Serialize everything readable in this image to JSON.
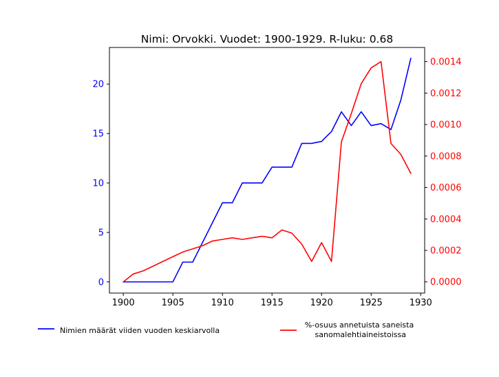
{
  "chart_data": {
    "type": "line",
    "title": "Nimi: Orvokki. Vuodet: 1900-1929. R-luku: 0.68",
    "x": [
      1900,
      1901,
      1902,
      1903,
      1904,
      1905,
      1906,
      1907,
      1908,
      1909,
      1910,
      1911,
      1912,
      1913,
      1914,
      1915,
      1916,
      1917,
      1918,
      1919,
      1920,
      1921,
      1922,
      1923,
      1924,
      1925,
      1926,
      1927,
      1928,
      1929
    ],
    "xlim": [
      1898.6,
      1930.4
    ],
    "xticks": [
      1900,
      1905,
      1910,
      1915,
      1920,
      1925,
      1930
    ],
    "grid": false,
    "legend_placement": "bottom",
    "series": [
      {
        "name": "Nimien määrät viiden vuoden keskiarvolla",
        "axis": "left",
        "color": "#0000ff",
        "values": [
          0,
          0,
          0,
          0,
          0,
          0,
          2,
          2,
          4,
          6,
          8,
          8,
          10,
          10,
          10,
          11.6,
          11.6,
          11.6,
          14,
          14,
          14.2,
          15.2,
          17.2,
          15.8,
          17.2,
          15.8,
          16,
          15.4,
          18.4,
          22.6
        ]
      },
      {
        "name": "%-osuus annetuista saneista\n sanomalehtiaineistoissa",
        "axis": "right",
        "color": "#ff0000",
        "values": [
          0,
          5e-05,
          7e-05,
          0.0001,
          0.00013,
          0.00016,
          0.00019,
          0.00021,
          0.00023,
          0.00026,
          0.00027,
          0.00028,
          0.00027,
          0.00028,
          0.00029,
          0.00028,
          0.00033,
          0.00031,
          0.00024,
          0.00013,
          0.00025,
          0.00013,
          0.00089,
          0.00107,
          0.00126,
          0.00136,
          0.0014,
          0.00088,
          0.00081,
          0.00069
        ]
      }
    ],
    "y_left": {
      "ylim": [
        -1.13,
        23.7
      ],
      "ticks": [
        0,
        5,
        10,
        15,
        20
      ],
      "tick_labels": [
        "0",
        "5",
        "10",
        "15",
        "20"
      ],
      "color": "#0000ff"
    },
    "y_right": {
      "ylim": [
        -7.11e-05,
        0.00149
      ],
      "ticks": [
        0,
        0.0002,
        0.0004,
        0.0006,
        0.0008,
        0.001,
        0.0012,
        0.0014
      ],
      "tick_labels": [
        "0.0000",
        "0.0002",
        "0.0004",
        "0.0006",
        "0.0008",
        "0.0010",
        "0.0012",
        "0.0014"
      ],
      "color": "#ff0000"
    }
  }
}
